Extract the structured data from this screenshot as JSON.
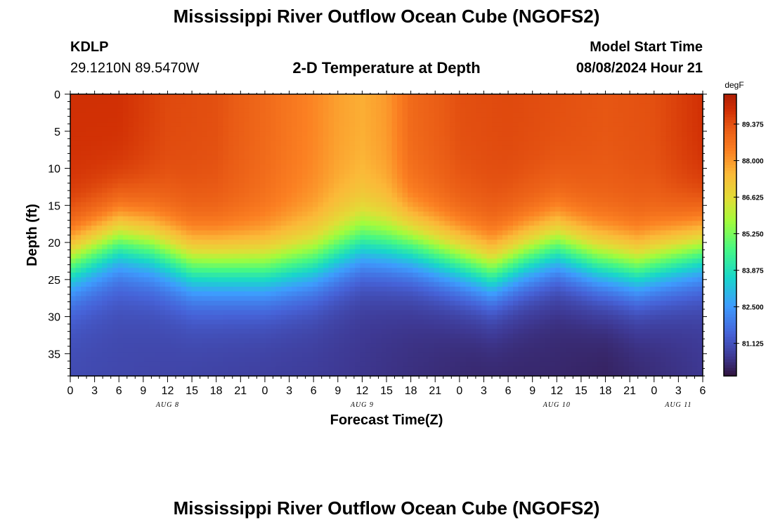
{
  "header": {
    "title": "Mississippi River Outflow Ocean Cube (NGOFS2)",
    "station": "KDLP",
    "coords": "29.1210N  89.5470W",
    "subtitle": "2-D Temperature at Depth",
    "model_start_label": "Model Start Time",
    "model_start_value": "08/08/2024 Hour 21"
  },
  "footer": {
    "title": "Mississippi River Outflow Ocean Cube (NGOFS2)"
  },
  "chart_data": {
    "type": "heatmap",
    "title": "2-D Temperature at Depth",
    "xlabel": "Forecast Time(Z)",
    "ylabel": "Depth (ft)",
    "x_tick_labels": [
      "0",
      "3",
      "6",
      "9",
      "12",
      "15",
      "18",
      "21",
      "0",
      "3",
      "6",
      "9",
      "12",
      "15",
      "18",
      "21",
      "0",
      "3",
      "6",
      "9",
      "12",
      "15",
      "18",
      "21",
      "0",
      "3",
      "6"
    ],
    "x_range_hours": [
      0,
      78
    ],
    "date_labels": [
      {
        "text": "AUG 8",
        "hour": 12
      },
      {
        "text": "AUG 9",
        "hour": 36
      },
      {
        "text": "AUG 10",
        "hour": 60
      },
      {
        "text": "AUG 11",
        "hour": 75
      }
    ],
    "y_ticks": [
      0,
      5,
      10,
      15,
      20,
      25,
      30,
      35
    ],
    "y_range_ft": [
      0,
      38
    ],
    "y_reversed": true,
    "colorbar": {
      "unit": "degF",
      "ticks": [
        "89.375",
        "88.000",
        "86.625",
        "85.250",
        "83.875",
        "82.500",
        "81.125"
      ],
      "range": [
        79.9,
        90.5
      ]
    },
    "surface_temperature_degF": [
      {
        "hour": 0,
        "value": 89.9
      },
      {
        "hour": 6,
        "value": 89.9
      },
      {
        "hour": 12,
        "value": 89.5
      },
      {
        "hour": 18,
        "value": 89.4
      },
      {
        "hour": 24,
        "value": 88.9
      },
      {
        "hour": 30,
        "value": 88.3
      },
      {
        "hour": 33,
        "value": 87.9
      },
      {
        "hour": 36,
        "value": 87.7
      },
      {
        "hour": 39,
        "value": 88.0
      },
      {
        "hour": 42,
        "value": 88.9
      },
      {
        "hour": 48,
        "value": 89.4
      },
      {
        "hour": 54,
        "value": 89.5
      },
      {
        "hour": 60,
        "value": 89.4
      },
      {
        "hour": 66,
        "value": 89.3
      },
      {
        "hour": 72,
        "value": 89.4
      },
      {
        "hour": 78,
        "value": 89.9
      }
    ],
    "thermocline_depth_ft": [
      {
        "hour": 0,
        "value": 22.5
      },
      {
        "hour": 6,
        "value": 19.5
      },
      {
        "hour": 10,
        "value": 20.5
      },
      {
        "hour": 15,
        "value": 23
      },
      {
        "hour": 24,
        "value": 23.5
      },
      {
        "hour": 30,
        "value": 22.5
      },
      {
        "hour": 36,
        "value": 20
      },
      {
        "hour": 42,
        "value": 20.5
      },
      {
        "hour": 48,
        "value": 22.5
      },
      {
        "hour": 52,
        "value": 24
      },
      {
        "hour": 56,
        "value": 22
      },
      {
        "hour": 60,
        "value": 20.5
      },
      {
        "hour": 65,
        "value": 22.5
      },
      {
        "hour": 70,
        "value": 23.5
      },
      {
        "hour": 78,
        "value": 21
      }
    ],
    "bottom_temperature_degF": [
      {
        "hour": 0,
        "value": 81.0
      },
      {
        "hour": 10,
        "value": 80.9
      },
      {
        "hour": 20,
        "value": 80.8
      },
      {
        "hour": 30,
        "value": 80.7
      },
      {
        "hour": 40,
        "value": 80.5
      },
      {
        "hour": 50,
        "value": 80.3
      },
      {
        "hour": 60,
        "value": 80.3
      },
      {
        "hour": 66,
        "value": 80.2
      },
      {
        "hour": 72,
        "value": 80.4
      },
      {
        "hour": 78,
        "value": 80.6
      }
    ]
  }
}
